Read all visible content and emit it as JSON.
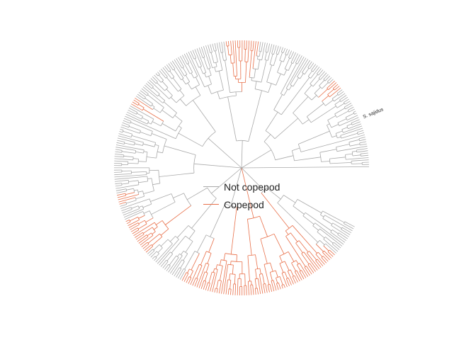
{
  "colors": {
    "not_copepod": "#a9a9a9",
    "copepod": "#e8704a",
    "text": "#222222"
  },
  "legend": {
    "items": [
      {
        "label": "Not copepod",
        "color": "#a9a9a9"
      },
      {
        "label": "Copepod",
        "color": "#e8704a"
      }
    ]
  },
  "tree": {
    "layout": "circular",
    "tip_count": 320,
    "highlighted_tip_label": "S. sajidus",
    "copepod_regions": [
      {
        "from_tip": 232,
        "to_tip": 304
      },
      {
        "from_tip": 196,
        "to_tip": 212
      },
      {
        "from_tip": 184,
        "to_tip": 188
      },
      {
        "from_tip": 140,
        "to_tip": 143
      },
      {
        "from_tip": 78,
        "to_tip": 92
      },
      {
        "from_tip": 36,
        "to_tip": 40
      }
    ]
  }
}
